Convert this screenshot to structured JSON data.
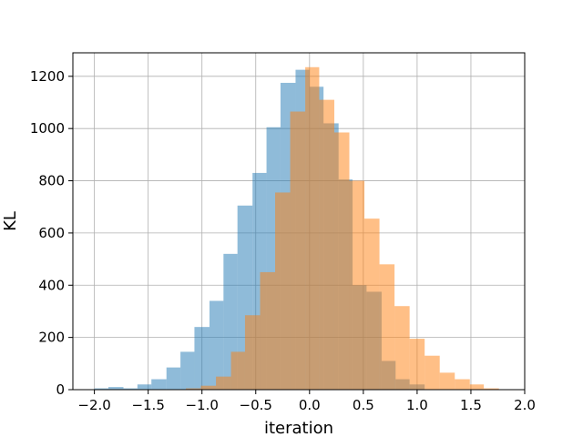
{
  "chart_data": {
    "type": "bar",
    "title": "",
    "xlabel": "iteration",
    "ylabel": "KL",
    "xlim": [
      -2.2,
      2.0
    ],
    "ylim": [
      0,
      1290
    ],
    "x_ticks": [
      -2.0,
      -1.5,
      -1.0,
      -0.5,
      0.0,
      0.5,
      1.0,
      1.5,
      2.0
    ],
    "x_tick_labels": [
      "−2.0",
      "−1.5",
      "−1.0",
      "−0.5",
      "0.0",
      "0.5",
      "1.0",
      "1.5",
      "2.0"
    ],
    "y_ticks": [
      0,
      200,
      400,
      600,
      800,
      1000,
      1200
    ],
    "y_tick_labels": [
      "0",
      "200",
      "400",
      "600",
      "800",
      "1000",
      "1200"
    ],
    "grid": true,
    "legend": "none",
    "bar_alpha": 0.5,
    "series": [
      {
        "color": "#1f77b4",
        "bins": [
          {
            "x0": -2.0,
            "x1": -1.87,
            "value": 5
          },
          {
            "x0": -1.87,
            "x1": -1.73,
            "value": 10
          },
          {
            "x0": -1.73,
            "x1": -1.6,
            "value": 5
          },
          {
            "x0": -1.6,
            "x1": -1.47,
            "value": 20
          },
          {
            "x0": -1.47,
            "x1": -1.33,
            "value": 40
          },
          {
            "x0": -1.33,
            "x1": -1.2,
            "value": 85
          },
          {
            "x0": -1.2,
            "x1": -1.07,
            "value": 145
          },
          {
            "x0": -1.07,
            "x1": -0.93,
            "value": 240
          },
          {
            "x0": -0.93,
            "x1": -0.8,
            "value": 340
          },
          {
            "x0": -0.8,
            "x1": -0.67,
            "value": 520
          },
          {
            "x0": -0.67,
            "x1": -0.53,
            "value": 705
          },
          {
            "x0": -0.53,
            "x1": -0.4,
            "value": 830
          },
          {
            "x0": -0.4,
            "x1": -0.27,
            "value": 1005
          },
          {
            "x0": -0.27,
            "x1": -0.13,
            "value": 1175
          },
          {
            "x0": -0.13,
            "x1": 0.0,
            "value": 1225
          },
          {
            "x0": 0.0,
            "x1": 0.13,
            "value": 1160
          },
          {
            "x0": 0.13,
            "x1": 0.27,
            "value": 1020
          },
          {
            "x0": 0.27,
            "x1": 0.4,
            "value": 805
          },
          {
            "x0": 0.4,
            "x1": 0.53,
            "value": 400
          },
          {
            "x0": 0.53,
            "x1": 0.67,
            "value": 375
          },
          {
            "x0": 0.67,
            "x1": 0.8,
            "value": 110
          },
          {
            "x0": 0.8,
            "x1": 0.93,
            "value": 40
          },
          {
            "x0": 0.93,
            "x1": 1.07,
            "value": 20
          }
        ]
      },
      {
        "color": "#ff7f0e",
        "bins": [
          {
            "x0": -1.15,
            "x1": -1.01,
            "value": 5
          },
          {
            "x0": -1.01,
            "x1": -0.87,
            "value": 15
          },
          {
            "x0": -0.87,
            "x1": -0.73,
            "value": 50
          },
          {
            "x0": -0.73,
            "x1": -0.6,
            "value": 145
          },
          {
            "x0": -0.6,
            "x1": -0.46,
            "value": 285
          },
          {
            "x0": -0.46,
            "x1": -0.32,
            "value": 450
          },
          {
            "x0": -0.32,
            "x1": -0.18,
            "value": 755
          },
          {
            "x0": -0.18,
            "x1": -0.04,
            "value": 1065
          },
          {
            "x0": -0.04,
            "x1": 0.09,
            "value": 1235
          },
          {
            "x0": 0.09,
            "x1": 0.23,
            "value": 1110
          },
          {
            "x0": 0.23,
            "x1": 0.37,
            "value": 985
          },
          {
            "x0": 0.37,
            "x1": 0.51,
            "value": 800
          },
          {
            "x0": 0.51,
            "x1": 0.65,
            "value": 655
          },
          {
            "x0": 0.65,
            "x1": 0.79,
            "value": 480
          },
          {
            "x0": 0.79,
            "x1": 0.93,
            "value": 320
          },
          {
            "x0": 0.93,
            "x1": 1.07,
            "value": 195
          },
          {
            "x0": 1.07,
            "x1": 1.21,
            "value": 130
          },
          {
            "x0": 1.21,
            "x1": 1.35,
            "value": 65
          },
          {
            "x0": 1.35,
            "x1": 1.49,
            "value": 40
          },
          {
            "x0": 1.49,
            "x1": 1.62,
            "value": 20
          },
          {
            "x0": 1.62,
            "x1": 1.76,
            "value": 5
          }
        ]
      }
    ]
  }
}
